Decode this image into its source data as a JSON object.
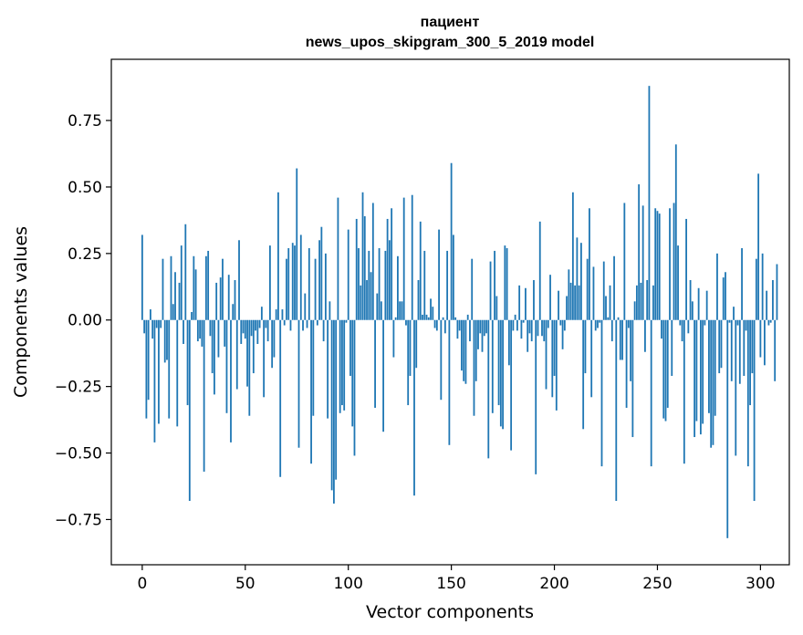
{
  "chart_data": {
    "type": "bar",
    "title": "пациент",
    "subtitle": "news_upos_skipgram_300_5_2019 model",
    "xlabel": "Vector components",
    "ylabel": "Components values",
    "xlim": [
      -15,
      314
    ],
    "ylim": [
      -0.92,
      0.98
    ],
    "x_ticks": [
      0,
      50,
      100,
      150,
      200,
      250,
      300
    ],
    "x_tick_labels": [
      "0",
      "50",
      "100",
      "150",
      "200",
      "250",
      "300"
    ],
    "y_ticks": [
      0.75,
      0.5,
      0.25,
      0.0,
      -0.25,
      -0.5,
      -0.75
    ],
    "y_tick_labels": [
      "0.75",
      "0.50",
      "0.25",
      "0.00",
      "−0.25",
      "−0.50",
      "−0.75"
    ],
    "bar_color": "#1f77b4",
    "values": [
      0.32,
      -0.05,
      -0.37,
      -0.3,
      0.04,
      -0.07,
      -0.46,
      -0.03,
      -0.39,
      -0.03,
      0.23,
      -0.16,
      -0.15,
      -0.37,
      0.24,
      0.06,
      0.18,
      -0.4,
      0.14,
      0.28,
      -0.09,
      0.36,
      -0.32,
      -0.68,
      0.03,
      0.24,
      0.19,
      -0.08,
      -0.07,
      -0.1,
      -0.57,
      0.24,
      0.26,
      -0.06,
      -0.2,
      -0.28,
      0.14,
      -0.14,
      0.16,
      0.23,
      -0.1,
      -0.35,
      0.17,
      -0.46,
      0.06,
      0.15,
      -0.26,
      0.3,
      -0.09,
      -0.05,
      -0.07,
      -0.25,
      -0.36,
      -0.06,
      -0.2,
      -0.04,
      -0.09,
      -0.03,
      0.05,
      -0.29,
      -0.03,
      -0.08,
      0.28,
      -0.18,
      -0.14,
      0.04,
      0.48,
      -0.59,
      0.04,
      -0.02,
      0.23,
      0.27,
      -0.04,
      0.29,
      0.28,
      0.57,
      -0.48,
      0.32,
      -0.04,
      0.1,
      -0.03,
      0.27,
      -0.54,
      -0.36,
      0.23,
      -0.02,
      0.3,
      0.35,
      -0.08,
      0.25,
      -0.37,
      0.07,
      -0.64,
      -0.69,
      -0.6,
      0.46,
      -0.35,
      -0.32,
      -0.34,
      -0.01,
      0.34,
      -0.21,
      -0.4,
      -0.51,
      0.38,
      0.27,
      0.13,
      0.48,
      0.39,
      0.15,
      0.26,
      0.18,
      0.44,
      -0.33,
      0.1,
      0.27,
      0.07,
      -0.42,
      0.26,
      0.38,
      0.3,
      0.42,
      -0.14,
      0.01,
      0.24,
      0.07,
      0.07,
      0.46,
      -0.02,
      -0.32,
      -0.21,
      0.47,
      -0.66,
      -0.18,
      0.15,
      0.37,
      0.02,
      0.26,
      0.02,
      0.01,
      0.08,
      0.05,
      -0.03,
      -0.04,
      0.34,
      -0.3,
      0.01,
      -0.05,
      0.26,
      -0.47,
      0.59,
      0.32,
      0.01,
      -0.07,
      -0.04,
      -0.19,
      -0.23,
      -0.24,
      0.02,
      -0.08,
      0.23,
      -0.36,
      -0.23,
      -0.11,
      -0.05,
      -0.12,
      -0.06,
      -0.05,
      -0.52,
      0.22,
      -0.35,
      0.26,
      0.09,
      -0.32,
      -0.4,
      -0.41,
      0.28,
      0.27,
      -0.17,
      -0.49,
      -0.04,
      0.02,
      -0.04,
      0.13,
      -0.07,
      -0.01,
      0.12,
      -0.12,
      -0.05,
      -0.08,
      0.15,
      -0.58,
      -0.06,
      0.37,
      -0.06,
      -0.08,
      -0.26,
      -0.03,
      0.17,
      -0.29,
      -0.21,
      -0.34,
      0.11,
      -0.02,
      -0.11,
      -0.04,
      0.09,
      0.19,
      0.14,
      0.48,
      0.13,
      0.31,
      0.13,
      0.29,
      -0.41,
      -0.2,
      0.23,
      0.42,
      -0.29,
      0.2,
      -0.04,
      -0.03,
      -0.01,
      -0.55,
      0.22,
      0.09,
      0.01,
      0.13,
      -0.08,
      0.24,
      -0.68,
      0.01,
      -0.15,
      -0.15,
      0.44,
      -0.33,
      -0.03,
      -0.23,
      -0.44,
      0.07,
      0.13,
      0.51,
      0.14,
      0.43,
      -0.12,
      0.15,
      0.88,
      -0.55,
      0.13,
      0.42,
      0.41,
      0.4,
      -0.07,
      -0.37,
      -0.38,
      -0.33,
      0.42,
      -0.21,
      0.44,
      0.66,
      0.28,
      -0.02,
      -0.08,
      -0.54,
      0.38,
      -0.05,
      0.15,
      0.07,
      -0.44,
      -0.38,
      0.12,
      -0.43,
      -0.39,
      -0.02,
      0.11,
      -0.35,
      -0.48,
      -0.47,
      -0.36,
      0.25,
      -0.2,
      -0.18,
      0.16,
      0.18,
      -0.82,
      -0.01,
      -0.23,
      0.05,
      -0.51,
      -0.02,
      -0.24,
      0.27,
      -0.21,
      -0.04,
      -0.55,
      -0.32,
      -0.2,
      -0.68,
      0.23,
      0.55,
      -0.14,
      0.25,
      -0.17,
      0.11,
      -0.02,
      -0.01,
      0.15,
      -0.23,
      0.21
    ]
  }
}
